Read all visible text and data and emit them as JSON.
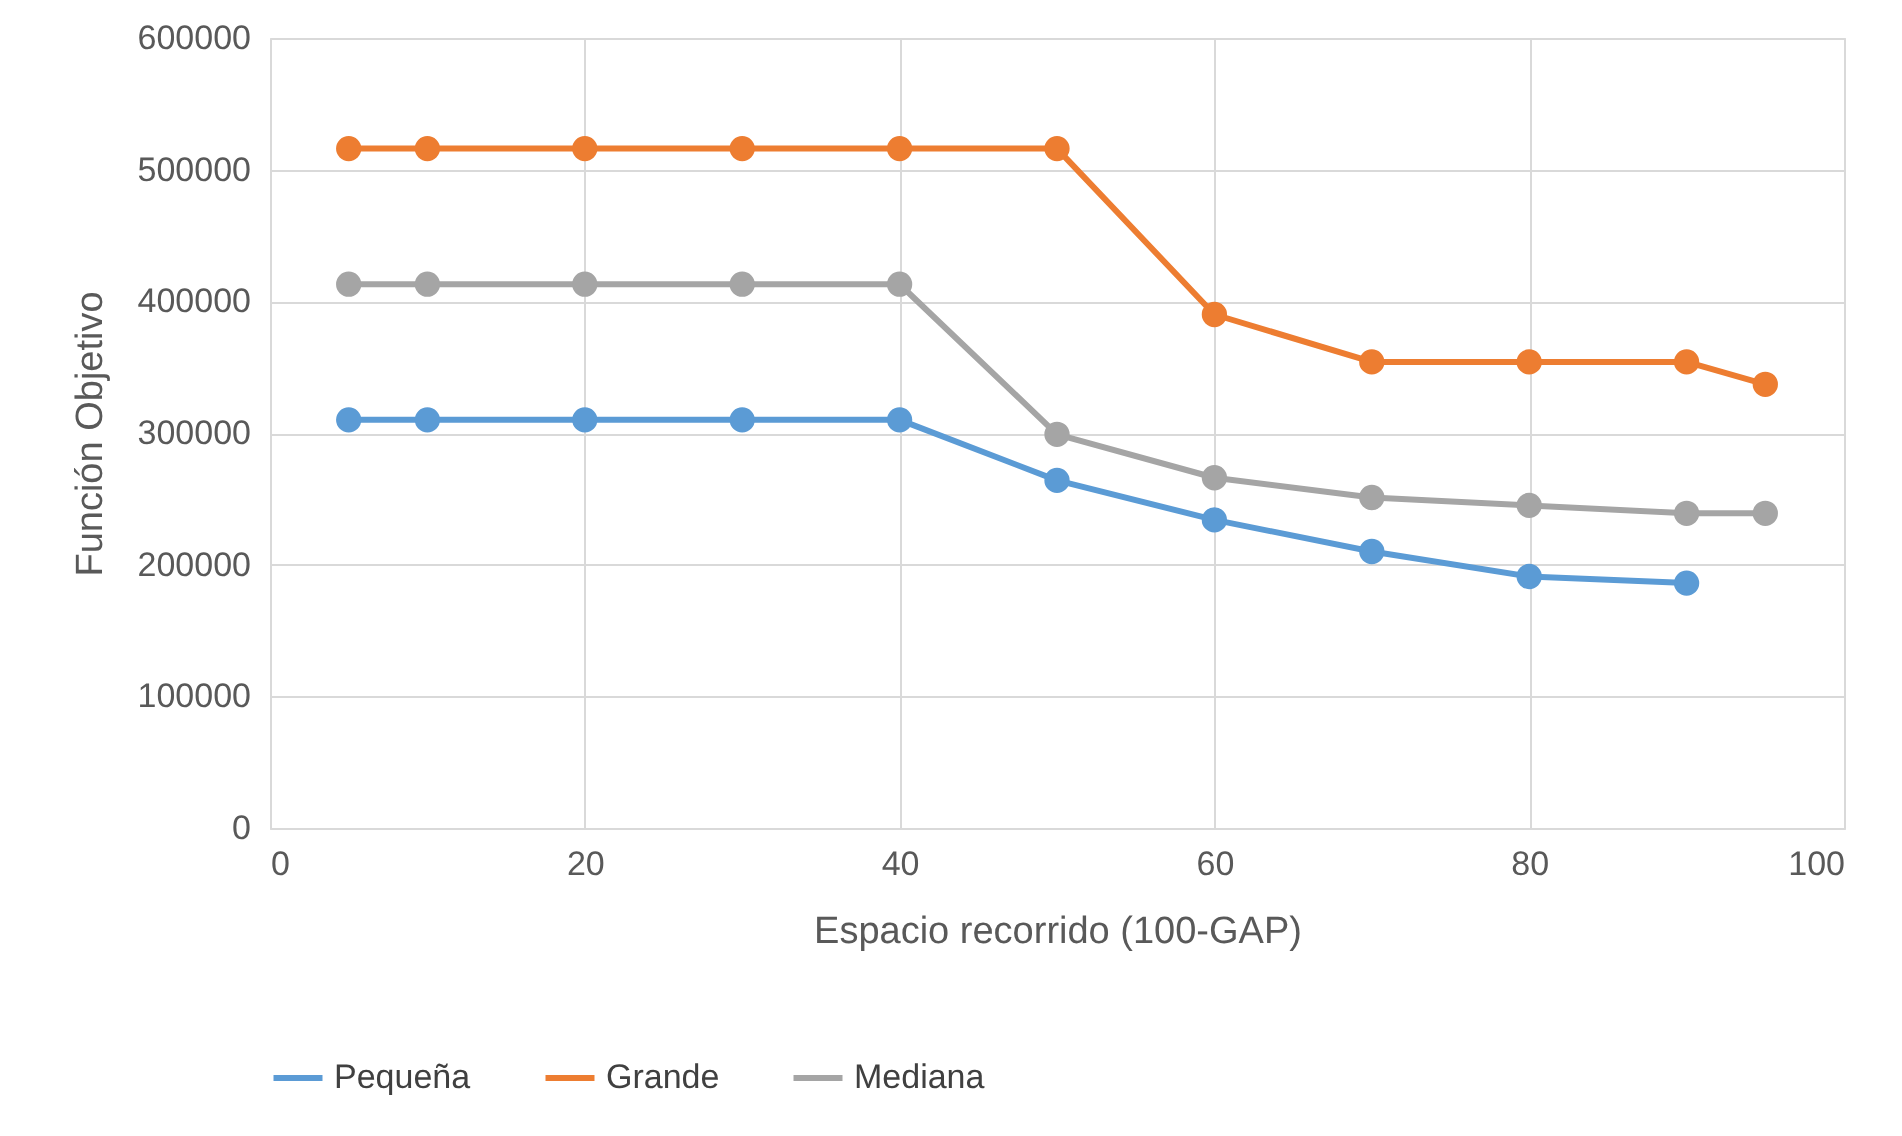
{
  "chart_data": {
    "type": "line",
    "xlabel": "Espacio recorrido (100-GAP)",
    "ylabel": "Función Objetivo",
    "x": [
      5,
      10,
      20,
      30,
      40,
      50,
      60,
      70,
      80,
      90,
      95
    ],
    "series": [
      {
        "name": "Pequeña",
        "color": "#5b9bd5",
        "values": [
          310000,
          310000,
          310000,
          310000,
          310000,
          264000,
          234000,
          210000,
          191000,
          186000,
          null
        ]
      },
      {
        "name": "Grande",
        "color": "#ed7d31",
        "values": [
          516000,
          516000,
          516000,
          516000,
          516000,
          516000,
          390000,
          354000,
          354000,
          354000,
          337000
        ]
      },
      {
        "name": "Mediana",
        "color": "#a5a5a5",
        "values": [
          413000,
          413000,
          413000,
          413000,
          413000,
          299000,
          266000,
          251000,
          245000,
          239000,
          239000
        ]
      }
    ],
    "xlim": [
      0,
      100
    ],
    "xticks": [
      0,
      20,
      40,
      60,
      80,
      100
    ],
    "ylim": [
      0,
      600000
    ],
    "yticks": [
      0,
      100000,
      200000,
      300000,
      400000,
      500000,
      600000
    ],
    "grid": true,
    "legend": "bottom",
    "marker": "circle",
    "line_style": "solid"
  }
}
